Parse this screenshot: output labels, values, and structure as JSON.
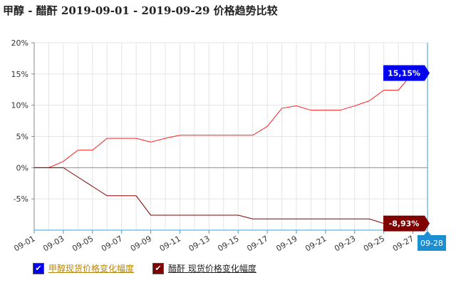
{
  "title": "甲醇 - 醋酐 2019-09-01 - 2019-09-29 价格趋势比较",
  "legend": [
    {
      "label": "甲醇现货价格变化幅度",
      "color": "#0000ee",
      "text_color": "#b8860b",
      "checked": true
    },
    {
      "label": "醋酐 现货价格变化幅度",
      "color": "#800000",
      "text_color": "#222222",
      "checked": true
    }
  ],
  "chart_data": {
    "type": "line",
    "title": "甲醇 - 醋酐 2019-09-01 - 2019-09-29 价格趋势比较",
    "x": [
      "09-01",
      "09-02",
      "09-03",
      "09-04",
      "09-05",
      "09-06",
      "09-07",
      "09-08",
      "09-09",
      "09-10",
      "09-11",
      "09-12",
      "09-13",
      "09-14",
      "09-15",
      "09-16",
      "09-17",
      "09-18",
      "09-19",
      "09-20",
      "09-21",
      "09-22",
      "09-23",
      "09-24",
      "09-25",
      "09-26",
      "09-27",
      "09-28"
    ],
    "x_tick_labels": [
      "09-01",
      "09-03",
      "09-05",
      "09-07",
      "09-09",
      "09-11",
      "09-13",
      "09-15",
      "09-17",
      "09-19",
      "09-21",
      "09-23",
      "09-25",
      "09-27"
    ],
    "highlighted_x": "09-28",
    "ylim": [
      -10,
      20
    ],
    "y_ticks": [
      -5,
      0,
      5,
      10,
      15,
      20
    ],
    "y_tick_labels": [
      "-5%",
      "0%",
      "5%",
      "10%",
      "15%",
      "20%"
    ],
    "grid": true,
    "series": [
      {
        "name": "甲醇现货价格变化幅度",
        "color": "#ff2020",
        "values": [
          0,
          0,
          1,
          2.8,
          2.8,
          4.7,
          4.7,
          4.7,
          4.1,
          4.7,
          5.2,
          5.2,
          5.2,
          5.2,
          5.2,
          5.2,
          6.6,
          9.5,
          9.9,
          9.2,
          9.2,
          9.2,
          9.9,
          10.7,
          12.4,
          12.4,
          15.15,
          15.15
        ],
        "end_label": "15,15%",
        "end_label_color": "#0000ee"
      },
      {
        "name": "醋酐 现货价格变化幅度",
        "color": "#800000",
        "values": [
          0,
          0,
          0,
          -1.5,
          -3,
          -4.5,
          -4.5,
          -4.5,
          -7.6,
          -7.6,
          -7.6,
          -7.6,
          -7.6,
          -7.6,
          -7.6,
          -8.2,
          -8.2,
          -8.2,
          -8.2,
          -8.2,
          -8.2,
          -8.2,
          -8.2,
          -8.2,
          -8.93,
          -8.93,
          -8.93,
          -8.93
        ],
        "end_label": "-8,93%",
        "end_label_color": "#800000"
      }
    ]
  }
}
